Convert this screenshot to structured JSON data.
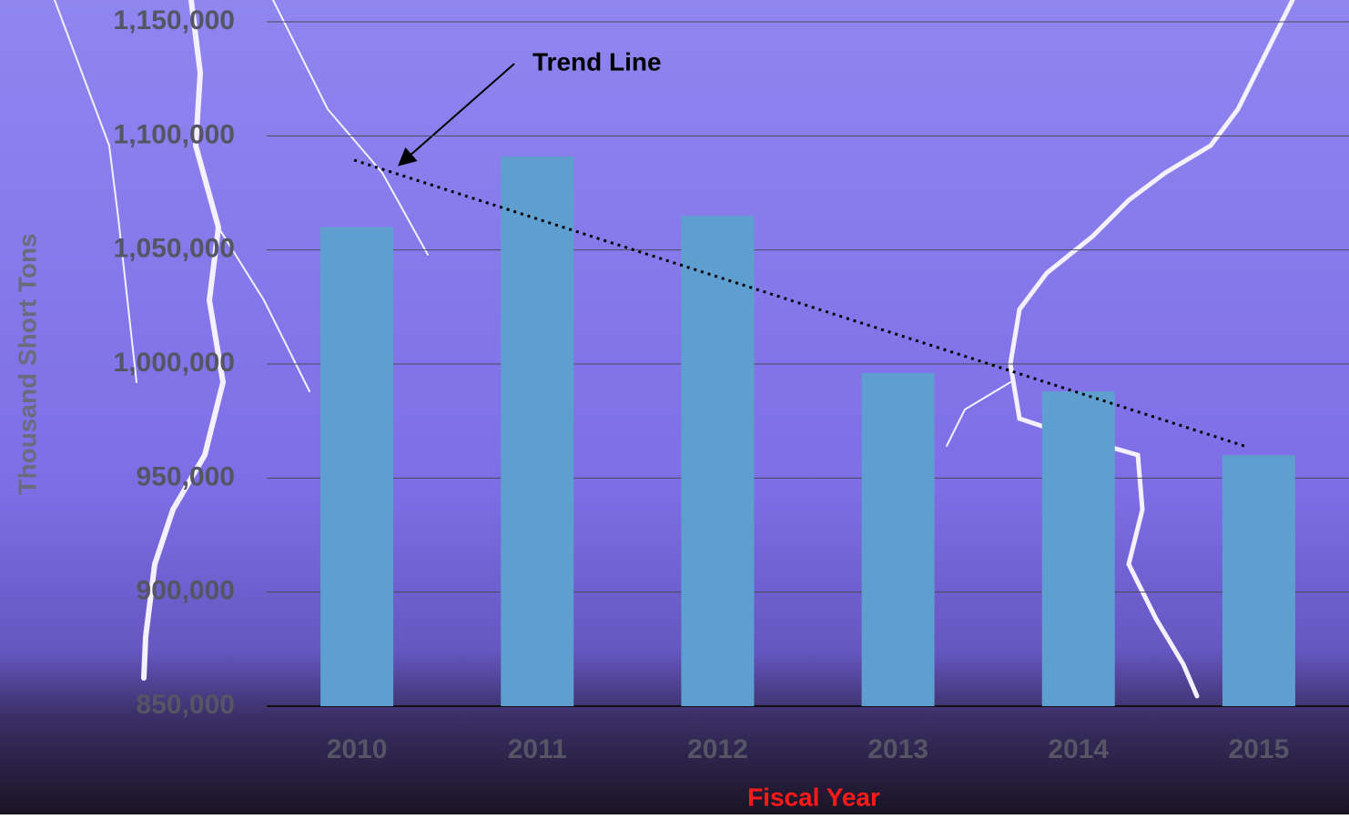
{
  "chart_data": {
    "type": "bar",
    "categories": [
      "2010",
      "2011",
      "2012",
      "2013",
      "2014",
      "2015"
    ],
    "values": [
      1060000,
      1091000,
      1065000,
      996000,
      988000,
      960000
    ],
    "color": "#5f9fd0",
    "ylim": [
      850000,
      1150000
    ],
    "yticks": [
      {
        "value": 850000,
        "label": "850,000"
      },
      {
        "value": 900000,
        "label": "900,000"
      },
      {
        "value": 950000,
        "label": "950,000"
      },
      {
        "value": 1000000,
        "label": "1,000,000"
      },
      {
        "value": 1050000,
        "label": "1,050,000"
      },
      {
        "value": 1100000,
        "label": "1,100,000"
      },
      {
        "value": 1150000,
        "label": "1,150,000"
      }
    ],
    "grid": true,
    "y_label": "Thousand Short Tons",
    "x_label": "Fiscal Year",
    "trendline": {
      "label": "Trend Line"
    }
  }
}
